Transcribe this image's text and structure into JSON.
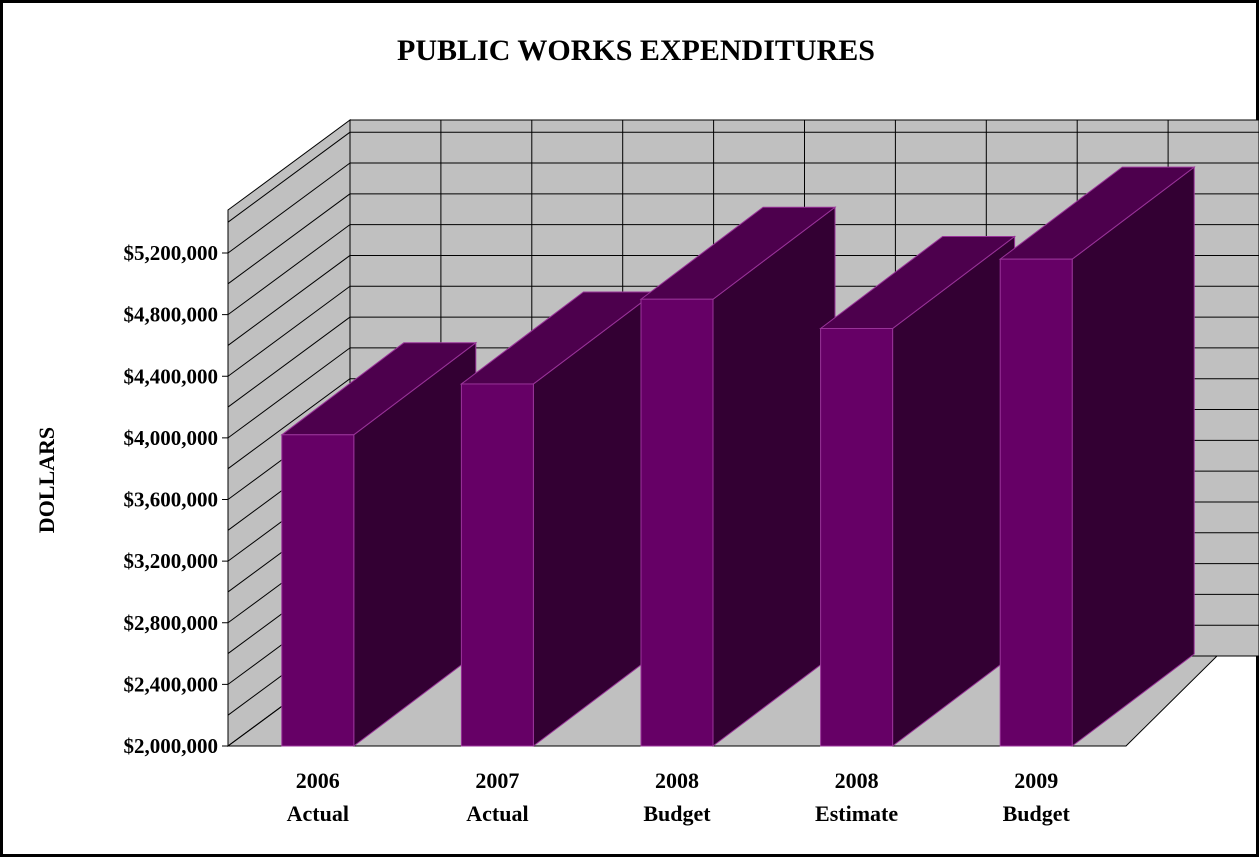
{
  "chart_data": {
    "type": "bar",
    "title": "PUBLIC WORKS EXPENDITURES",
    "xlabel": "",
    "ylabel": "DOLLARS",
    "categories": [
      [
        "2006",
        "Actual"
      ],
      [
        "2007",
        "Actual"
      ],
      [
        "2008",
        "Budget"
      ],
      [
        "2008",
        "Estimate"
      ],
      [
        "2009",
        "Budget"
      ]
    ],
    "values": [
      4020000,
      4350000,
      4900000,
      4710000,
      5160000
    ],
    "ylim": [
      2000000,
      5200000
    ],
    "ytick_labels": [
      "$2,000,000",
      "$2,400,000",
      "$2,800,000",
      "$3,200,000",
      "$3,600,000",
      "$4,000,000",
      "$4,400,000",
      "$4,800,000",
      "$5,200,000"
    ],
    "grid": true,
    "legend": "none",
    "style": "3d-columns",
    "colors": {
      "bar_front": "#660066",
      "bar_top": "#4d004d",
      "bar_side": "#330033",
      "bar_edge": "#993399",
      "back_wall": "#c0c0c0",
      "side_wall": "#c0c0c0",
      "floor": "#c0c0c0",
      "grid": "#000000"
    }
  }
}
